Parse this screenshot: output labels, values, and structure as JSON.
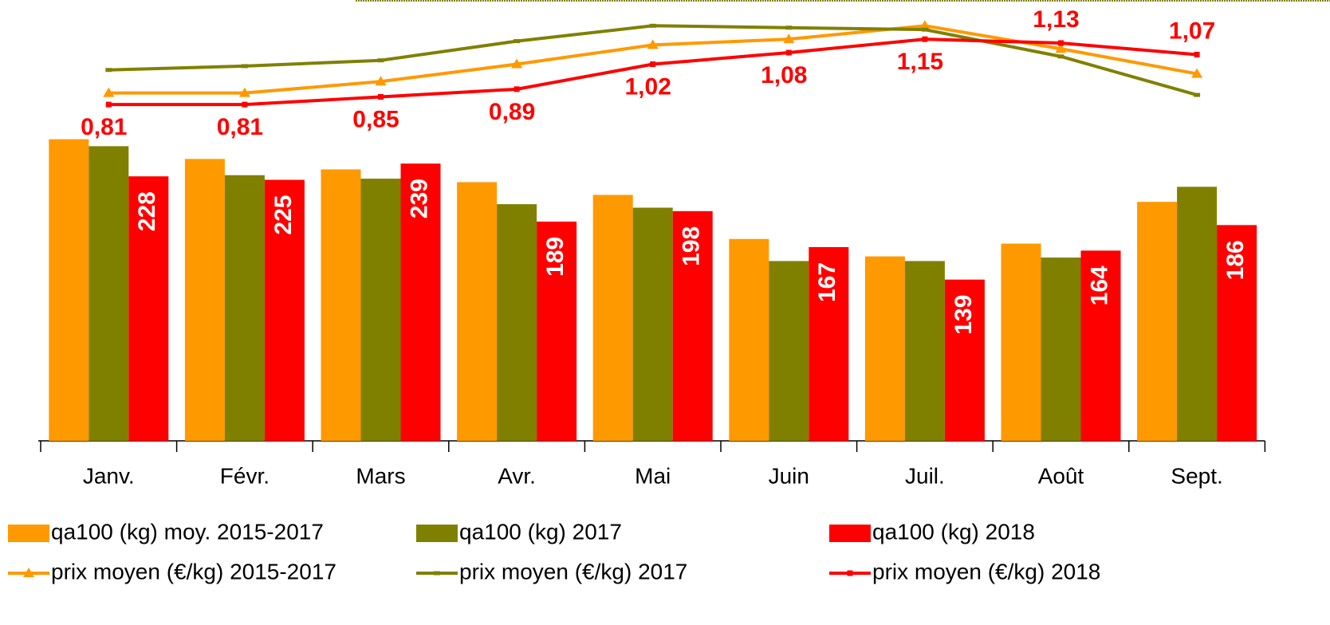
{
  "chart_data": {
    "type": "bar",
    "categories": [
      "Janv.",
      "Févr.",
      "Mars",
      "Avr.",
      "Mai",
      "Juin",
      "Juil.",
      "Août",
      "Sept."
    ],
    "ylim": [
      0,
      380
    ],
    "y2lim": [
      -0.94,
      1.354
    ],
    "series": [
      {
        "name": "qa100 (kg) moy. 2015-2017",
        "type": "bar",
        "color": "#ff9900",
        "values": [
          260,
          243,
          234,
          223,
          212,
          174,
          159,
          170,
          206
        ]
      },
      {
        "name": "qa100 (kg) 2017",
        "type": "bar",
        "color": "#808000",
        "values": [
          254,
          229,
          226,
          204,
          201,
          155,
          155,
          158,
          219
        ]
      },
      {
        "name": "qa100 (kg) 2018",
        "type": "bar",
        "color": "#ff0000",
        "values": [
          228,
          225,
          239,
          189,
          198,
          167,
          139,
          164,
          186
        ],
        "data_labels": true
      },
      {
        "name": "prix moyen (€/kg) 2015-2017",
        "type": "line",
        "axis": "y2",
        "color": "#ff9900",
        "marker": "triangle",
        "values": [
          0.87,
          0.87,
          0.93,
          1.02,
          1.12,
          1.15,
          1.22,
          1.1,
          0.97
        ]
      },
      {
        "name": "prix moyen (€/kg) 2017",
        "type": "line",
        "axis": "y2",
        "color": "#808000",
        "marker": "dash",
        "values": [
          0.99,
          1.01,
          1.04,
          1.14,
          1.22,
          1.21,
          1.2,
          1.06,
          0.86
        ]
      },
      {
        "name": "prix moyen (€/kg) 2018",
        "type": "line",
        "axis": "y2",
        "color": "#ff0000",
        "marker": "square",
        "values": [
          0.81,
          0.81,
          0.85,
          0.89,
          1.02,
          1.08,
          1.15,
          1.13,
          1.07
        ],
        "value_labels": [
          "0,81",
          "0,81",
          "0,85",
          "0,89",
          "1,02",
          "1,08",
          "1,15",
          "1,13",
          "1,07"
        ]
      }
    ],
    "legend": "bottom"
  }
}
